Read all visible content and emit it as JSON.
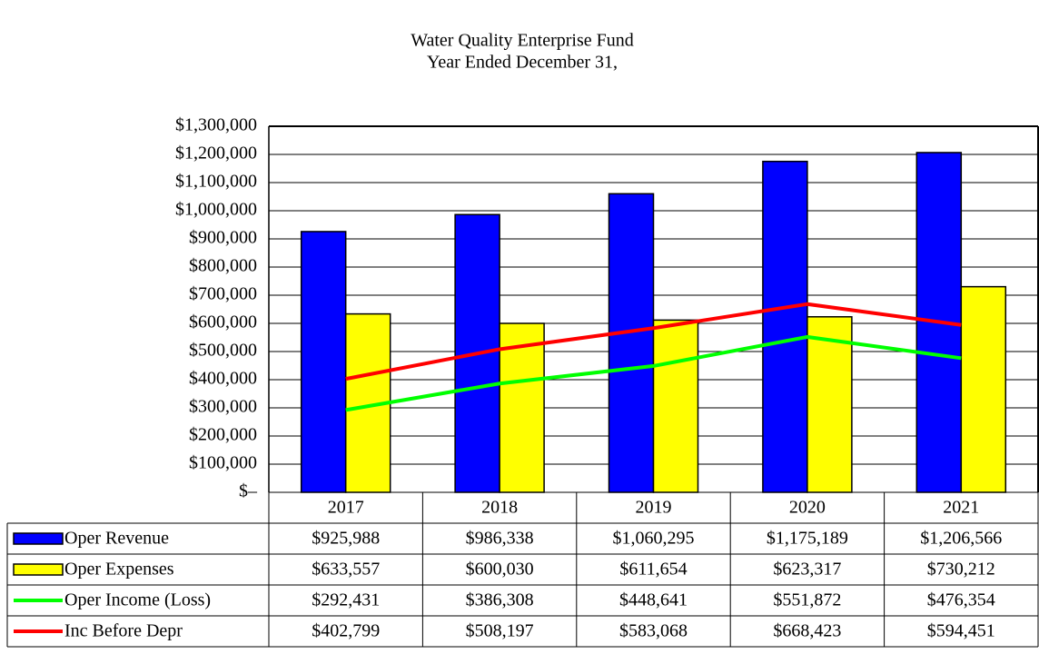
{
  "chart_data": {
    "type": "bar",
    "title": "Water Quality Enterprise Fund",
    "subtitle": "Year Ended December 31,",
    "categories": [
      "2017",
      "2018",
      "2019",
      "2020",
      "2021"
    ],
    "series": [
      {
        "name": "Oper Revenue",
        "type": "bar",
        "color": "#0000ff",
        "values": [
          925988,
          986338,
          1060295,
          1175189,
          1206566
        ],
        "value_labels": [
          "$925,988",
          "$986,338",
          "$1,060,295",
          "$1,175,189",
          "$1,206,566"
        ]
      },
      {
        "name": "Oper Expenses",
        "type": "bar",
        "color": "#ffff00",
        "values": [
          633557,
          600030,
          611654,
          623317,
          730212
        ],
        "value_labels": [
          "$633,557",
          "$600,030",
          "$611,654",
          "$623,317",
          "$730,212"
        ]
      },
      {
        "name": "Oper Income (Loss)",
        "type": "line",
        "color": "#00ff00",
        "values": [
          292431,
          386308,
          448641,
          551872,
          476354
        ],
        "value_labels": [
          "$292,431",
          "$386,308",
          "$448,641",
          "$551,872",
          "$476,354"
        ]
      },
      {
        "name": "Inc Before Depr",
        "type": "line",
        "color": "#ff0000",
        "values": [
          402799,
          508197,
          583068,
          668423,
          594451
        ],
        "value_labels": [
          "$402,799",
          "$508,197",
          "$583,068",
          "$668,423",
          "$594,451"
        ]
      }
    ],
    "ylim": [
      0,
      1300000
    ],
    "yticks": [
      {
        "value": 0,
        "label": "$–"
      },
      {
        "value": 100000,
        "label": "$100,000"
      },
      {
        "value": 200000,
        "label": "$200,000"
      },
      {
        "value": 300000,
        "label": "$300,000"
      },
      {
        "value": 400000,
        "label": "$400,000"
      },
      {
        "value": 500000,
        "label": "$500,000"
      },
      {
        "value": 600000,
        "label": "$600,000"
      },
      {
        "value": 700000,
        "label": "$700,000"
      },
      {
        "value": 800000,
        "label": "$800,000"
      },
      {
        "value": 900000,
        "label": "$900,000"
      },
      {
        "value": 1000000,
        "label": "$1,000,000"
      },
      {
        "value": 1100000,
        "label": "$1,100,000"
      },
      {
        "value": 1200000,
        "label": "$1,200,000"
      },
      {
        "value": 1300000,
        "label": "$1,300,000"
      }
    ],
    "grid": true
  }
}
